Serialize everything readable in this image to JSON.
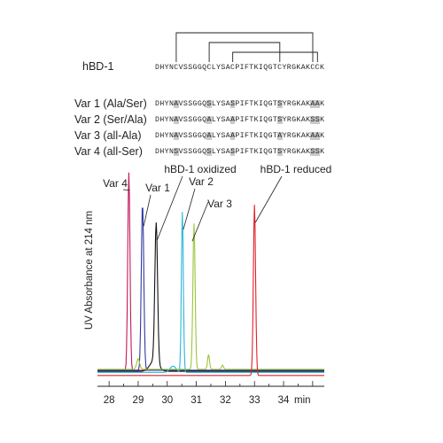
{
  "sequences": {
    "wildtype": {
      "label": "hBD-1",
      "sequence": "DHYNCVSSGGQCLYSACPIFTKIQGTCYRGKAKCCK"
    },
    "variants": [
      {
        "label": "Var 1 (Ala/Ser)",
        "segments": [
          {
            "t": "DHYN",
            "h": false
          },
          {
            "t": "A",
            "h": true
          },
          {
            "t": "VSSGGQ",
            "h": false
          },
          {
            "t": "S",
            "h": true
          },
          {
            "t": "LYSA",
            "h": false
          },
          {
            "t": "S",
            "h": true
          },
          {
            "t": "PIFTKIQGT",
            "h": false
          },
          {
            "t": "S",
            "h": true
          },
          {
            "t": "YRGKAK",
            "h": false
          },
          {
            "t": "AA",
            "h": true
          },
          {
            "t": "K",
            "h": false
          }
        ]
      },
      {
        "label": "Var 2 (Ser/Ala)",
        "segments": [
          {
            "t": "DHYN",
            "h": false
          },
          {
            "t": "A",
            "h": true
          },
          {
            "t": "VSSGGQ",
            "h": false
          },
          {
            "t": "A",
            "h": true
          },
          {
            "t": "LYSA",
            "h": false
          },
          {
            "t": "A",
            "h": true
          },
          {
            "t": "PIFTKIQGT",
            "h": false
          },
          {
            "t": "S",
            "h": true
          },
          {
            "t": "YRGKAK",
            "h": false
          },
          {
            "t": "SS",
            "h": true
          },
          {
            "t": "K",
            "h": false
          }
        ]
      },
      {
        "label": "Var 3 (all-Ala)",
        "segments": [
          {
            "t": "DHYN",
            "h": false
          },
          {
            "t": "A",
            "h": true
          },
          {
            "t": "VSSGGQ",
            "h": false
          },
          {
            "t": "A",
            "h": true
          },
          {
            "t": "LYSA",
            "h": false
          },
          {
            "t": "A",
            "h": true
          },
          {
            "t": "PIFTKIQGT",
            "h": false
          },
          {
            "t": "A",
            "h": true
          },
          {
            "t": "YRGKAK",
            "h": false
          },
          {
            "t": "AA",
            "h": true
          },
          {
            "t": "K",
            "h": false
          }
        ]
      },
      {
        "label": "Var 4 (all-Ser)",
        "segments": [
          {
            "t": "DHYN",
            "h": false
          },
          {
            "t": "S",
            "h": true
          },
          {
            "t": "VSSGGQ",
            "h": false
          },
          {
            "t": "S",
            "h": true
          },
          {
            "t": "LYSA",
            "h": false
          },
          {
            "t": "S",
            "h": true
          },
          {
            "t": "PIFTKIQGT",
            "h": false
          },
          {
            "t": "S",
            "h": true
          },
          {
            "t": "YRGKAK",
            "h": false
          },
          {
            "t": "SS",
            "h": true
          },
          {
            "t": "K",
            "h": false
          }
        ]
      }
    ],
    "disulfide_bonds": [
      [
        4,
        33
      ],
      [
        11,
        26
      ],
      [
        16,
        34
      ]
    ]
  },
  "chart_data": {
    "type": "line",
    "xlabel": "min",
    "ylabel": "UV Absorbance at 214 nm",
    "xlim": [
      27.6,
      35.4
    ],
    "ylim": [
      0,
      1.0
    ],
    "xticks": [
      28,
      29,
      30,
      31,
      32,
      33,
      34
    ],
    "xtick_labels": [
      "28",
      "29",
      "30",
      "31",
      "32",
      "33",
      "34"
    ],
    "grid": false,
    "series": [
      {
        "name": "Var 4",
        "color": "#c2185b",
        "peaks": [
          [
            28.68,
            0.95,
            0.09
          ]
        ],
        "baseline": 0.03
      },
      {
        "name": "Var 1",
        "color": "#2e3a9e",
        "peaks": [
          [
            29.15,
            0.8,
            0.1
          ]
        ],
        "baseline": 0.03
      },
      {
        "name": "hBD-1 oxidized",
        "color": "#111111",
        "peaks": [
          [
            29.62,
            0.67,
            0.11
          ],
          [
            29.55,
            0.05,
            0.35
          ]
        ],
        "baseline": 0.025
      },
      {
        "name": "Var 2",
        "color": "#29b6d9",
        "peaks": [
          [
            30.52,
            0.77,
            0.08
          ],
          [
            30.2,
            0.03,
            0.25
          ]
        ],
        "baseline": 0.02
      },
      {
        "name": "Var 3",
        "color": "#9bc53d",
        "peaks": [
          [
            30.92,
            0.7,
            0.09
          ],
          [
            29.0,
            0.05,
            0.12
          ],
          [
            31.42,
            0.07,
            0.08
          ],
          [
            31.9,
            0.02,
            0.08
          ]
        ],
        "baseline": 0.035
      },
      {
        "name": "hBD-1 reduced",
        "color": "#e0202a",
        "peaks": [
          [
            33.0,
            0.82,
            0.09
          ]
        ],
        "baseline": 0.005
      }
    ],
    "annotations": [
      {
        "text": "Var 4",
        "series": "Var 4"
      },
      {
        "text": "Var 1",
        "series": "Var 1"
      },
      {
        "text": "hBD-1 oxidized",
        "series": "hBD-1 oxidized"
      },
      {
        "text": "Var 2",
        "series": "Var 2"
      },
      {
        "text": "Var 3",
        "series": "Var 3"
      },
      {
        "text": "hBD-1 reduced",
        "series": "hBD-1 reduced"
      }
    ]
  }
}
